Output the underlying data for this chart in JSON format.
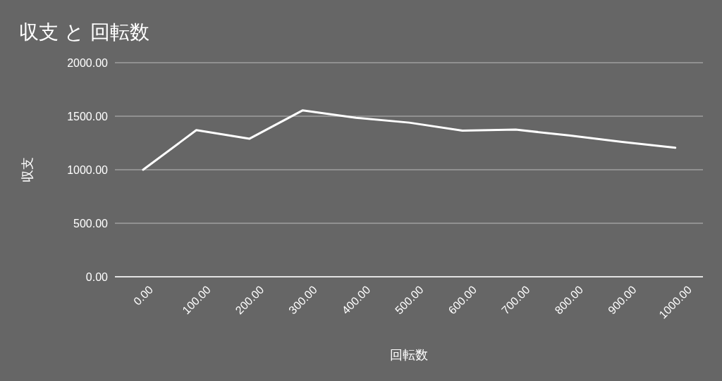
{
  "chart_data": {
    "type": "line",
    "title": "収支 と 回転数",
    "xlabel": "回転数",
    "ylabel": "収支",
    "x": [
      0,
      100,
      200,
      300,
      400,
      500,
      600,
      700,
      800,
      900,
      1000
    ],
    "series": [
      {
        "color": "#ffffff",
        "values": [
          1000,
          1370,
          1290,
          1555,
          1485,
          1440,
          1365,
          1375,
          1320,
          1260,
          1205
        ]
      }
    ],
    "xlim": [
      -53,
      1052
    ],
    "xticks": [
      {
        "value": 0,
        "label": "0.00"
      },
      {
        "value": 100,
        "label": "100.00"
      },
      {
        "value": 200,
        "label": "200.00"
      },
      {
        "value": 300,
        "label": "300.00"
      },
      {
        "value": 400,
        "label": "400.00"
      },
      {
        "value": 500,
        "label": "500.00"
      },
      {
        "value": 600,
        "label": "600.00"
      },
      {
        "value": 700,
        "label": "700.00"
      },
      {
        "value": 800,
        "label": "800.00"
      },
      {
        "value": 900,
        "label": "900.00"
      },
      {
        "value": 1000,
        "label": "1000.00"
      }
    ],
    "ylim": [
      0,
      2000
    ],
    "yticks": [
      {
        "value": 0,
        "label": "0.00"
      },
      {
        "value": 500,
        "label": "500.00"
      },
      {
        "value": 1000,
        "label": "1000.00"
      },
      {
        "value": 1500,
        "label": "1500.00"
      },
      {
        "value": 2000,
        "label": "2000.00"
      }
    ],
    "grid": "y",
    "marker": "none",
    "line_style": "solid"
  }
}
